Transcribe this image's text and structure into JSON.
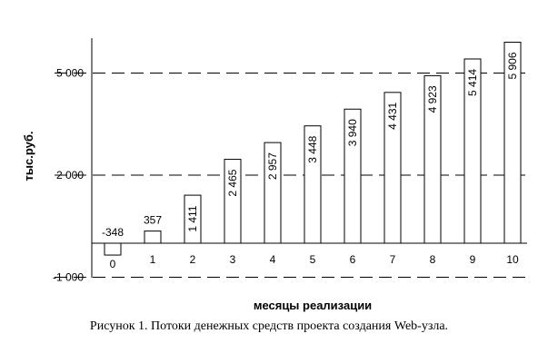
{
  "chart_data": {
    "type": "bar",
    "categories": [
      "0",
      "1",
      "2",
      "3",
      "4",
      "5",
      "6",
      "7",
      "8",
      "9",
      "10"
    ],
    "values": [
      -348,
      357,
      1411,
      2465,
      2957,
      3448,
      3940,
      4431,
      4923,
      5414,
      5906
    ],
    "value_labels": [
      "-348",
      "357",
      "1 411",
      "2 465",
      "2 957",
      "3 448",
      "3 940",
      "4 431",
      "4 923",
      "5 414",
      "5 906"
    ],
    "ylabel": "тыс.руб.",
    "xlabel": "месяцы реализации",
    "y_ticks": [
      -1000,
      2000,
      5000
    ],
    "y_tick_labels": [
      "-1 000",
      "2 000",
      "5 000"
    ],
    "ylim": [
      -1000,
      6000
    ],
    "grid": "dashed horizontal lines at y ticks",
    "bar_fill": "#ffffff",
    "bar_stroke": "#000000"
  },
  "caption": "Рисунок 1. Потоки денежных средств проекта создания Web-узла."
}
